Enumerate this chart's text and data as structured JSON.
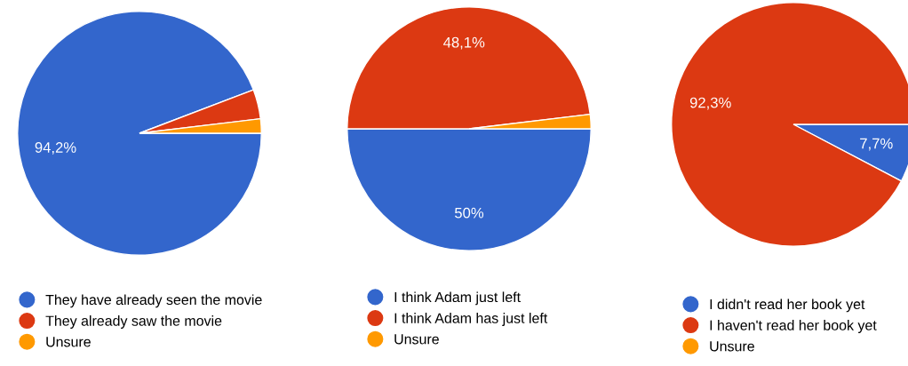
{
  "chart_data": [
    {
      "type": "pie",
      "categories": [
        "They have already seen the movie",
        "They already saw the movie",
        "Unsure"
      ],
      "values": [
        94.2,
        3.9,
        1.9
      ],
      "colors": [
        "#3366cc",
        "#dc3912",
        "#ff9900"
      ],
      "value_labels": [
        "94,2%",
        null,
        null
      ],
      "legend": "bottom"
    },
    {
      "type": "pie",
      "categories": [
        "I think Adam just left",
        "I think Adam has just left",
        "Unsure"
      ],
      "values": [
        50,
        48.1,
        1.9
      ],
      "colors": [
        "#3366cc",
        "#dc3912",
        "#ff9900"
      ],
      "value_labels": [
        "50%",
        "48,1%",
        null
      ],
      "legend": "bottom"
    },
    {
      "type": "pie",
      "categories": [
        "I didn't read her book yet",
        "I haven't read her book yet",
        "Unsure"
      ],
      "values": [
        7.7,
        92.3,
        0
      ],
      "colors": [
        "#3366cc",
        "#dc3912",
        "#ff9900"
      ],
      "value_labels": [
        "7,7%",
        "92,3%",
        null
      ],
      "legend": "bottom"
    }
  ]
}
